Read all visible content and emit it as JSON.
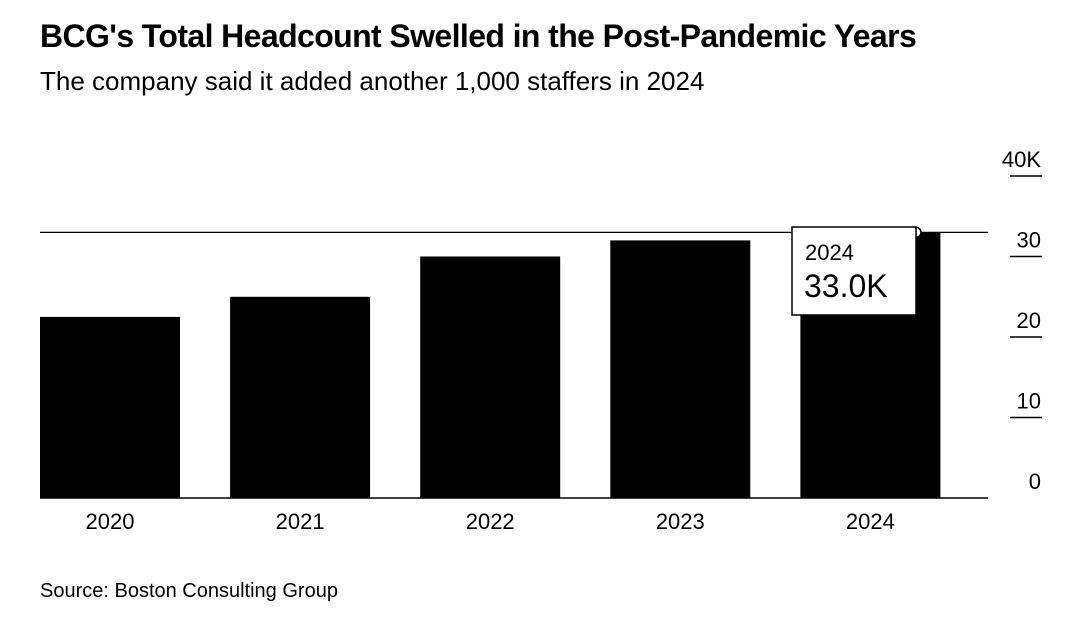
{
  "chart_data": {
    "type": "bar",
    "title": "BCG's Total Headcount Swelled in the Post-Pandemic Years",
    "subtitle": "The company said it added another 1,000 staffers in 2024",
    "categories": [
      "2020",
      "2021",
      "2022",
      "2023",
      "2024"
    ],
    "values": [
      22.5,
      25.0,
      30.0,
      32.0,
      33.0
    ],
    "ylim": [
      0,
      40
    ],
    "y_ticks": [
      {
        "value": 0,
        "label": "0"
      },
      {
        "value": 10,
        "label": "10"
      },
      {
        "value": 20,
        "label": "20"
      },
      {
        "value": 30,
        "label": "30"
      },
      {
        "value": 40,
        "label": "40K"
      }
    ],
    "reference_line_value": 33.0,
    "tooltip": {
      "year": "2024",
      "value_label": "33.0K"
    },
    "bar_color": "#000000",
    "axis_position": "right",
    "source": "Source: Boston Consulting Group"
  }
}
